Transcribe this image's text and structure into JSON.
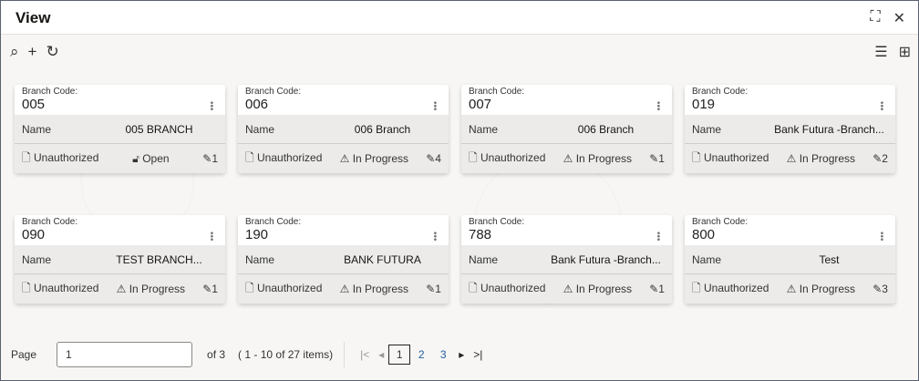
{
  "window": {
    "title": "View"
  },
  "toolbar": {
    "icons": [
      "search-icon",
      "add-icon",
      "refresh-icon"
    ]
  },
  "view_toggle": {
    "icons": [
      "list-view-icon",
      "grid-view-icon"
    ]
  },
  "card_labels": {
    "code_label": "Branch Code:",
    "name_label": "Name"
  },
  "cards": [
    {
      "code": "005",
      "name": "005 BRANCH",
      "auth": "Unauthorized",
      "status": "Open",
      "status_icon": "unlock-icon",
      "edits": "1"
    },
    {
      "code": "006",
      "name": "006 Branch",
      "auth": "Unauthorized",
      "status": "In Progress",
      "status_icon": "warning-icon",
      "edits": "4"
    },
    {
      "code": "007",
      "name": "006 Branch",
      "auth": "Unauthorized",
      "status": "In Progress",
      "status_icon": "warning-icon",
      "edits": "1"
    },
    {
      "code": "019",
      "name": "Bank Futura -Branch...",
      "auth": "Unauthorized",
      "status": "In Progress",
      "status_icon": "warning-icon",
      "edits": "2"
    },
    {
      "code": "090",
      "name": "TEST BRANCH...",
      "auth": "Unauthorized",
      "status": "In Progress",
      "status_icon": "warning-icon",
      "edits": "1"
    },
    {
      "code": "190",
      "name": "BANK FUTURA",
      "auth": "Unauthorized",
      "status": "In Progress",
      "status_icon": "warning-icon",
      "edits": "1"
    },
    {
      "code": "788",
      "name": "Bank Futura -Branch...",
      "auth": "Unauthorized",
      "status": "In Progress",
      "status_icon": "warning-icon",
      "edits": "1"
    },
    {
      "code": "800",
      "name": "Test",
      "auth": "Unauthorized",
      "status": "In Progress",
      "status_icon": "warning-icon",
      "edits": "3"
    }
  ],
  "pagination": {
    "page_label": "Page",
    "page_value": "1",
    "of_label": "of 3",
    "items_label": "( 1 - 10 of 27 items)",
    "pages": [
      "1",
      "2",
      "3"
    ],
    "current": "1"
  }
}
